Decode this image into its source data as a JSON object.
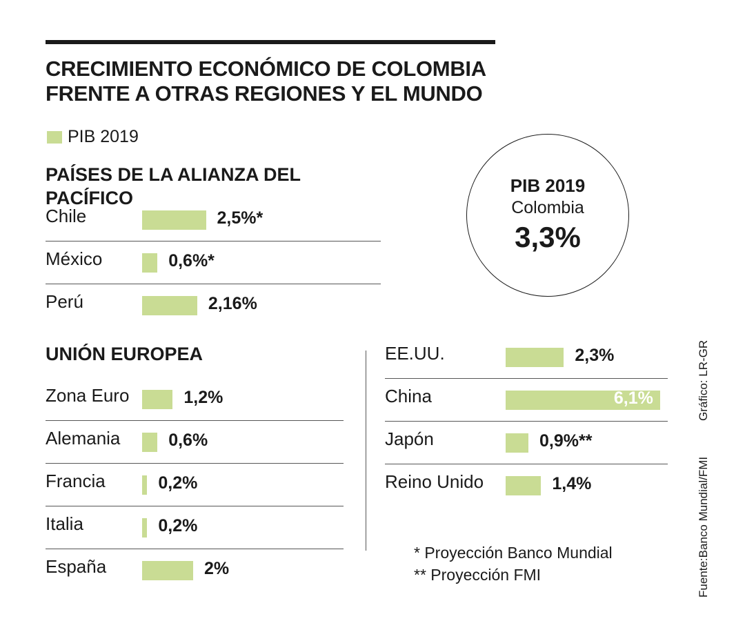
{
  "title_line1": "CRECIMIENTO ECONÓMICO DE COLOMBIA",
  "title_line2": "FRENTE A OTRAS REGIONES Y EL MUNDO",
  "legend_label": "PIB 2019",
  "bar_color": "#c9dc94",
  "circle": {
    "title": "PIB 2019",
    "subtitle": "Colombia",
    "value": "3,3%"
  },
  "notes": [
    "*  Proyección Banco Mundial",
    "** Proyección FMI"
  ],
  "source": "Fuente:Banco Mundial/FMI",
  "credit": "Gráfico: LR-GR",
  "chart_data": {
    "type": "bar",
    "title": "CRECIMIENTO ECONÓMICO DE COLOMBIA FRENTE A OTRAS REGIONES Y EL MUNDO",
    "series_name": "PIB 2019",
    "unit": "%",
    "groups": [
      {
        "name": "PAÍSES DE LA ALIANZA DEL PACÍFICO",
        "items": [
          {
            "country": "Chile",
            "value": 2.5,
            "label": "2,5%*"
          },
          {
            "country": "México",
            "value": 0.6,
            "label": "0,6%*"
          },
          {
            "country": "Perú",
            "value": 2.16,
            "label": "2,16%"
          }
        ]
      },
      {
        "name": "UNIÓN EUROPEA",
        "items": [
          {
            "country": "Zona Euro",
            "value": 1.2,
            "label": "1,2%"
          },
          {
            "country": "Alemania",
            "value": 0.6,
            "label": "0,6%"
          },
          {
            "country": "Francia",
            "value": 0.2,
            "label": "0,2%"
          },
          {
            "country": "Italia",
            "value": 0.2,
            "label": "0,2%"
          },
          {
            "country": "España",
            "value": 2.0,
            "label": "2%"
          }
        ]
      },
      {
        "name": "",
        "items": [
          {
            "country": "EE.UU.",
            "value": 2.3,
            "label": "2,3%"
          },
          {
            "country": "China",
            "value": 6.1,
            "label": "6,1%"
          },
          {
            "country": "Japón",
            "value": 0.9,
            "label": "0,9%**"
          },
          {
            "country": "Reino Unido",
            "value": 1.4,
            "label": "1,4%"
          }
        ]
      }
    ]
  }
}
